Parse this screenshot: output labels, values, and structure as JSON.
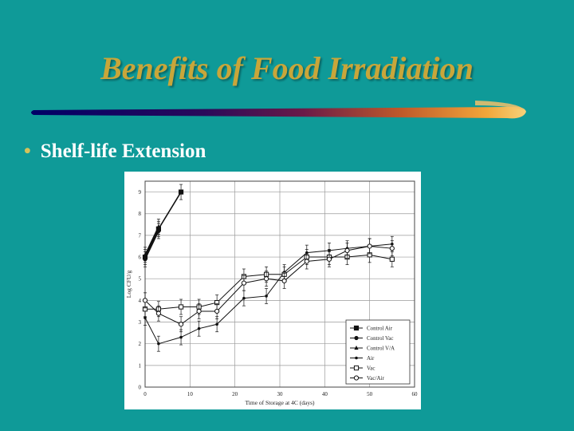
{
  "slide": {
    "title": "Benefits of Food Irradiation",
    "bullet": "Shelf-life Extension",
    "title_color": "#c8a63a",
    "background_color": "#0f9a98",
    "bullet_icon": "bullet-dot-icon"
  },
  "chart_data": {
    "type": "line",
    "title": "",
    "xlabel": "Time of Storage at 4C (days)",
    "ylabel": "Log CFU/g",
    "xlim": [
      0,
      60
    ],
    "ylim": [
      0,
      9.5
    ],
    "xticks": [
      0,
      10,
      20,
      30,
      40,
      50,
      60
    ],
    "yticks": [
      0,
      1,
      2,
      3,
      4,
      5,
      6,
      7,
      8,
      9
    ],
    "grid": true,
    "legend_position": "bottom-right",
    "series": [
      {
        "name": "Control Air",
        "marker": "square-filled",
        "points": [
          [
            0,
            6.0
          ],
          [
            3,
            7.3
          ],
          [
            8,
            9.0
          ]
        ],
        "err": 0.35
      },
      {
        "name": "Control Vac",
        "marker": "circle-filled",
        "points": [
          [
            0,
            5.9
          ],
          [
            3,
            7.2
          ]
        ],
        "err": 0.35
      },
      {
        "name": "Control V/A",
        "marker": "triangle-filled",
        "points": [
          [
            0,
            6.1
          ],
          [
            3,
            7.4
          ]
        ],
        "err": 0.35
      },
      {
        "name": "Air",
        "marker": "dot-small",
        "points": [
          [
            0,
            3.2
          ],
          [
            3,
            2.0
          ],
          [
            8,
            2.3
          ],
          [
            12,
            2.7
          ],
          [
            16,
            2.9
          ],
          [
            22,
            4.1
          ],
          [
            27,
            4.2
          ],
          [
            31,
            5.3
          ],
          [
            36,
            6.2
          ],
          [
            41,
            6.3
          ],
          [
            45,
            6.4
          ],
          [
            50,
            6.5
          ],
          [
            55,
            6.6
          ]
        ],
        "err": 0.35
      },
      {
        "name": "Vac",
        "marker": "square-open",
        "points": [
          [
            0,
            3.6
          ],
          [
            3,
            3.6
          ],
          [
            8,
            3.7
          ],
          [
            12,
            3.7
          ],
          [
            16,
            3.9
          ],
          [
            22,
            5.1
          ],
          [
            27,
            5.2
          ],
          [
            31,
            5.2
          ],
          [
            36,
            6.0
          ],
          [
            41,
            6.0
          ],
          [
            45,
            6.0
          ],
          [
            50,
            6.1
          ],
          [
            55,
            5.9
          ]
        ],
        "err": 0.35
      },
      {
        "name": "Vac/Air",
        "marker": "circle-open",
        "points": [
          [
            0,
            4.0
          ],
          [
            3,
            3.4
          ],
          [
            8,
            2.9
          ],
          [
            12,
            3.5
          ],
          [
            16,
            3.5
          ],
          [
            22,
            4.8
          ],
          [
            27,
            5.0
          ],
          [
            31,
            4.9
          ],
          [
            36,
            5.8
          ],
          [
            41,
            5.9
          ],
          [
            45,
            6.3
          ],
          [
            50,
            6.5
          ],
          [
            55,
            6.4
          ]
        ],
        "err": 0.35
      }
    ]
  }
}
